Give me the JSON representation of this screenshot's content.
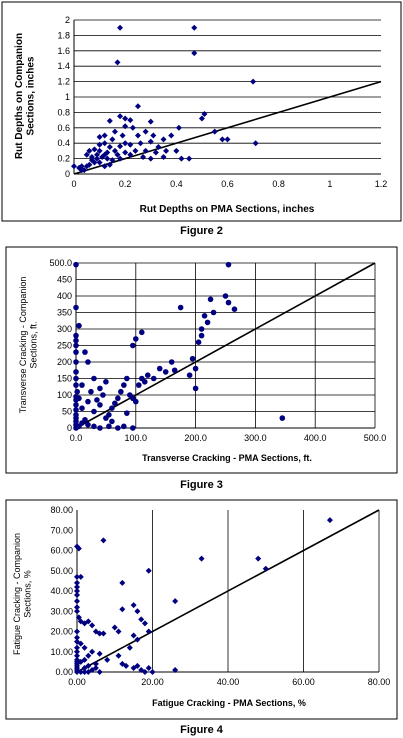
{
  "chart_data": [
    {
      "type": "scatter",
      "caption": "Figure 2",
      "xlabel": "Rut Depths on PMA Sections, inches",
      "ylabel": "Rut Depths on Companion Sections, inches",
      "xlim": [
        0,
        1.2
      ],
      "ylim": [
        0,
        2
      ],
      "xticks": [
        "0",
        "0.2",
        "0.4",
        "0.6",
        "0.8",
        "1",
        "1.2"
      ],
      "yticks": [
        "0",
        "0.2",
        "0.4",
        "0.6",
        "0.8",
        "1",
        "1.2",
        "1.4",
        "1.6",
        "1.8",
        "2"
      ],
      "grid": "horizontal",
      "legend": "none",
      "reference_line": [
        [
          0,
          0
        ],
        [
          1.2,
          1.2
        ]
      ],
      "marker_color": "#000080",
      "points": [
        [
          0.18,
          1.9
        ],
        [
          0.47,
          1.9
        ],
        [
          0.17,
          1.45
        ],
        [
          0.47,
          1.57
        ],
        [
          0.7,
          1.2
        ],
        [
          0.71,
          0.4
        ],
        [
          0.6,
          0.45
        ],
        [
          0.25,
          0.88
        ],
        [
          0.18,
          0.75
        ],
        [
          0.2,
          0.72
        ],
        [
          0.14,
          0.69
        ],
        [
          0.22,
          0.7
        ],
        [
          0.3,
          0.68
        ],
        [
          0.5,
          0.72
        ],
        [
          0.51,
          0.78
        ],
        [
          0.41,
          0.6
        ],
        [
          0.2,
          0.62
        ],
        [
          0.23,
          0.6
        ],
        [
          0.16,
          0.55
        ],
        [
          0.12,
          0.5
        ],
        [
          0.1,
          0.48
        ],
        [
          0.15,
          0.45
        ],
        [
          0.19,
          0.5
        ],
        [
          0.25,
          0.5
        ],
        [
          0.28,
          0.55
        ],
        [
          0.31,
          0.5
        ],
        [
          0.12,
          0.4
        ],
        [
          0.1,
          0.38
        ],
        [
          0.14,
          0.35
        ],
        [
          0.18,
          0.36
        ],
        [
          0.2,
          0.4
        ],
        [
          0.22,
          0.38
        ],
        [
          0.26,
          0.4
        ],
        [
          0.3,
          0.42
        ],
        [
          0.35,
          0.45
        ],
        [
          0.38,
          0.5
        ],
        [
          0.4,
          0.3
        ],
        [
          0.36,
          0.3
        ],
        [
          0.33,
          0.35
        ],
        [
          0.32,
          0.28
        ],
        [
          0.28,
          0.3
        ],
        [
          0.24,
          0.3
        ],
        [
          0.2,
          0.28
        ],
        [
          0.16,
          0.3
        ],
        [
          0.13,
          0.28
        ],
        [
          0.1,
          0.3
        ],
        [
          0.08,
          0.32
        ],
        [
          0.06,
          0.3
        ],
        [
          0.05,
          0.25
        ],
        [
          0.07,
          0.22
        ],
        [
          0.09,
          0.2
        ],
        [
          0.11,
          0.22
        ],
        [
          0.13,
          0.2
        ],
        [
          0.15,
          0.18
        ],
        [
          0.18,
          0.2
        ],
        [
          0.1,
          0.15
        ],
        [
          0.08,
          0.15
        ],
        [
          0.06,
          0.12
        ],
        [
          0.05,
          0.1
        ],
        [
          0.12,
          0.1
        ],
        [
          0.14,
          0.12
        ],
        [
          0.03,
          0.1
        ],
        [
          0.02,
          0.08
        ],
        [
          0.0,
          0.1
        ],
        [
          0.04,
          0.05
        ],
        [
          0.42,
          0.2
        ],
        [
          0.45,
          0.2
        ],
        [
          0.55,
          0.55
        ],
        [
          0.58,
          0.45
        ],
        [
          0.35,
          0.22
        ],
        [
          0.3,
          0.2
        ],
        [
          0.27,
          0.22
        ],
        [
          0.22,
          0.25
        ],
        [
          0.17,
          0.25
        ],
        [
          0.12,
          0.25
        ],
        [
          0.09,
          0.25
        ],
        [
          0.07,
          0.18
        ],
        [
          0.03,
          0.05
        ]
      ]
    },
    {
      "type": "scatter",
      "caption": "Figure 3",
      "xlabel": "Transverse Cracking - PMA Sections, ft.",
      "ylabel": "Transverse Cracking - Companion Sections, ft.",
      "xlim": [
        0,
        500
      ],
      "ylim": [
        0,
        500
      ],
      "xticks": [
        "0.0",
        "100.0",
        "200.0",
        "300.0",
        "400.0",
        "500.0"
      ],
      "yticks": [
        "0",
        "50",
        "100",
        "150",
        "200",
        "250",
        "300",
        "350",
        "400",
        "450",
        "500.0"
      ],
      "grid": "both",
      "legend": "none",
      "reference_line": [
        [
          0,
          0
        ],
        [
          500,
          500
        ]
      ],
      "marker_color": "#000080",
      "points": [
        [
          0,
          495
        ],
        [
          0,
          365
        ],
        [
          5,
          310
        ],
        [
          0,
          280
        ],
        [
          0,
          265
        ],
        [
          0,
          250
        ],
        [
          0,
          230
        ],
        [
          0,
          200
        ],
        [
          0,
          170
        ],
        [
          0,
          150
        ],
        [
          0,
          130
        ],
        [
          2,
          110
        ],
        [
          0,
          95
        ],
        [
          0,
          85
        ],
        [
          0,
          70
        ],
        [
          0,
          55
        ],
        [
          0,
          40
        ],
        [
          0,
          30
        ],
        [
          0,
          20
        ],
        [
          0,
          10
        ],
        [
          0,
          0
        ],
        [
          5,
          5
        ],
        [
          10,
          15
        ],
        [
          15,
          25
        ],
        [
          20,
          10
        ],
        [
          30,
          5
        ],
        [
          40,
          0
        ],
        [
          55,
          5
        ],
        [
          70,
          0
        ],
        [
          80,
          5
        ],
        [
          95,
          0
        ],
        [
          10,
          60
        ],
        [
          20,
          80
        ],
        [
          30,
          50
        ],
        [
          40,
          70
        ],
        [
          50,
          30
        ],
        [
          55,
          40
        ],
        [
          60,
          60
        ],
        [
          70,
          90
        ],
        [
          75,
          110
        ],
        [
          80,
          130
        ],
        [
          85,
          150
        ],
        [
          90,
          100
        ],
        [
          95,
          90
        ],
        [
          100,
          80
        ],
        [
          105,
          130
        ],
        [
          110,
          150
        ],
        [
          115,
          140
        ],
        [
          120,
          160
        ],
        [
          130,
          150
        ],
        [
          140,
          180
        ],
        [
          150,
          170
        ],
        [
          160,
          200
        ],
        [
          165,
          175
        ],
        [
          175,
          365
        ],
        [
          195,
          210
        ],
        [
          200,
          180
        ],
        [
          205,
          260
        ],
        [
          210,
          280
        ],
        [
          210,
          300
        ],
        [
          215,
          340
        ],
        [
          220,
          320
        ],
        [
          225,
          390
        ],
        [
          230,
          350
        ],
        [
          250,
          400
        ],
        [
          255,
          380
        ],
        [
          255,
          495
        ],
        [
          265,
          360
        ],
        [
          345,
          30
        ],
        [
          95,
          250
        ],
        [
          100,
          270
        ],
        [
          110,
          290
        ],
        [
          20,
          200
        ],
        [
          30,
          150
        ],
        [
          25,
          110
        ],
        [
          40,
          120
        ],
        [
          45,
          100
        ],
        [
          60,
          20
        ],
        [
          15,
          230
        ],
        [
          10,
          130
        ],
        [
          5,
          90
        ],
        [
          85,
          45
        ],
        [
          65,
          75
        ],
        [
          35,
          85
        ],
        [
          50,
          140
        ],
        [
          200,
          120
        ],
        [
          190,
          160
        ]
      ]
    },
    {
      "type": "scatter",
      "caption": "Figure 4",
      "xlabel": "Fatigue Cracking - PMA Sections, %",
      "ylabel": "Fatigue Cracking - Companion Sections, %",
      "xlim": [
        0,
        80
      ],
      "ylim": [
        0,
        80
      ],
      "xticks": [
        "0.00",
        "20.00",
        "40.00",
        "60.00",
        "80.00"
      ],
      "yticks": [
        "0.00",
        "10.00",
        "20.00",
        "30.00",
        "40.00",
        "50.00",
        "60.00",
        "70.00",
        "80.00"
      ],
      "grid": "vertical",
      "legend": "none",
      "reference_line": [
        [
          0,
          0
        ],
        [
          80,
          80
        ]
      ],
      "marker_color": "#000080",
      "points": [
        [
          0,
          62
        ],
        [
          0.5,
          61
        ],
        [
          7,
          65
        ],
        [
          67,
          75
        ],
        [
          33,
          56
        ],
        [
          48,
          56
        ],
        [
          50,
          51
        ],
        [
          19,
          50
        ],
        [
          26,
          35
        ],
        [
          0,
          47
        ],
        [
          1,
          47
        ],
        [
          0,
          44
        ],
        [
          0,
          42
        ],
        [
          0,
          40
        ],
        [
          0,
          38
        ],
        [
          0,
          35
        ],
        [
          0,
          32
        ],
        [
          0,
          30
        ],
        [
          0.5,
          27
        ],
        [
          1,
          25
        ],
        [
          2,
          24
        ],
        [
          3,
          25
        ],
        [
          4,
          23
        ],
        [
          5,
          20
        ],
        [
          6,
          19
        ],
        [
          7,
          19
        ],
        [
          12,
          44
        ],
        [
          12,
          31
        ],
        [
          15,
          33
        ],
        [
          16,
          30
        ],
        [
          17,
          26
        ],
        [
          18,
          24
        ],
        [
          19,
          20
        ],
        [
          15,
          18
        ],
        [
          16,
          16
        ],
        [
          14,
          12
        ],
        [
          10,
          22
        ],
        [
          11,
          20
        ],
        [
          0,
          20
        ],
        [
          0,
          17
        ],
        [
          0,
          15
        ],
        [
          0,
          12
        ],
        [
          0,
          10
        ],
        [
          0,
          8
        ],
        [
          0,
          6
        ],
        [
          0,
          5
        ],
        [
          0,
          4
        ],
        [
          0,
          3
        ],
        [
          0,
          2
        ],
        [
          0,
          1
        ],
        [
          0,
          0
        ],
        [
          1,
          0
        ],
        [
          2,
          0
        ],
        [
          3,
          0
        ],
        [
          4,
          1
        ],
        [
          5,
          2
        ],
        [
          6,
          0
        ],
        [
          1,
          5
        ],
        [
          2,
          6
        ],
        [
          3,
          8
        ],
        [
          4,
          10
        ],
        [
          2,
          12
        ],
        [
          1,
          14
        ],
        [
          12,
          4
        ],
        [
          13,
          3
        ],
        [
          15,
          2
        ],
        [
          16,
          3
        ],
        [
          17,
          1
        ],
        [
          18,
          0
        ],
        [
          19,
          2
        ],
        [
          20,
          0
        ],
        [
          26,
          1
        ],
        [
          11,
          8
        ],
        [
          8,
          6
        ],
        [
          6,
          9
        ],
        [
          5,
          4
        ],
        [
          3,
          3
        ],
        [
          2,
          2
        ]
      ]
    }
  ]
}
